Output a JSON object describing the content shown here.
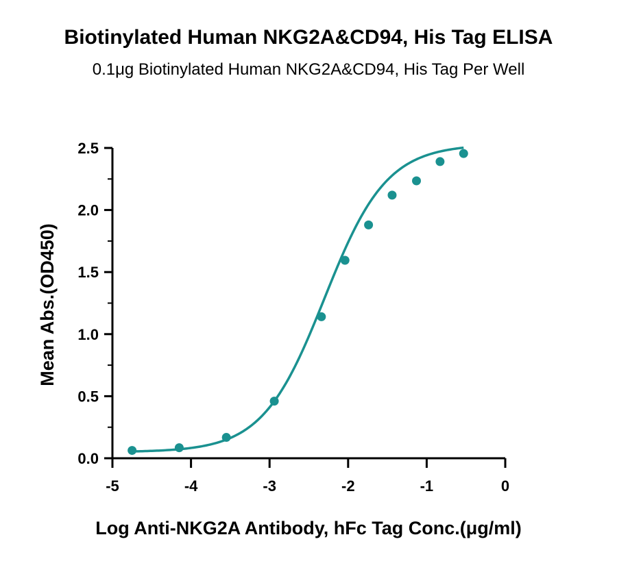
{
  "chart_data": {
    "type": "scatter",
    "title": "Biotinylated Human NKG2A&CD94, His Tag ELISA",
    "subtitle": "0.1μg Biotinylated Human NKG2A&CD94, His Tag Per Well",
    "xlabel": "Log Anti-NKG2A Antibody, hFc Tag Conc.(μg/ml)",
    "ylabel": "Mean Abs.(OD450)",
    "xlim": [
      -5,
      0
    ],
    "ylim": [
      0,
      2.5
    ],
    "xticks": [
      "-5",
      "-4",
      "-3",
      "-2",
      "-1",
      "0"
    ],
    "yticks": [
      "0.0",
      "0.5",
      "1.0",
      "1.5",
      "2.0",
      "2.5"
    ],
    "grid": false,
    "series": [
      {
        "color": "#1a9190",
        "x": [
          -4.75,
          -4.15,
          -3.55,
          -2.94,
          -2.34,
          -2.04,
          -1.74,
          -1.44,
          -1.13,
          -0.83,
          -0.53
        ],
        "y": [
          0.063,
          0.085,
          0.168,
          0.46,
          1.14,
          1.595,
          1.88,
          2.12,
          2.235,
          2.39,
          2.455
        ]
      }
    ],
    "fit_curve": {
      "type": "4PL",
      "bottom": 0.05,
      "top": 2.53,
      "logEC50": -2.3,
      "hill": 1.1
    }
  }
}
